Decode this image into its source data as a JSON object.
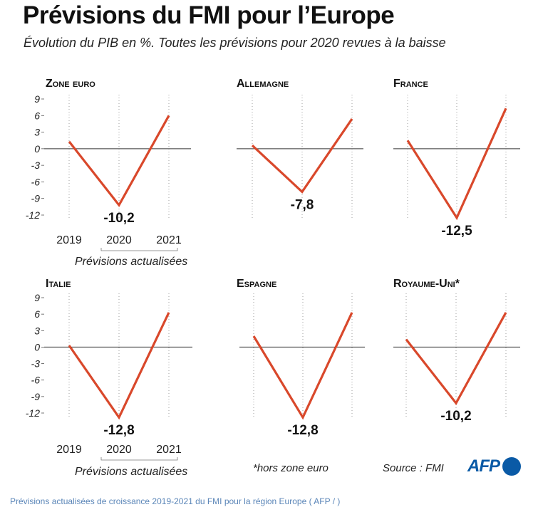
{
  "title": "Prévisions du FMI pour l’Europe",
  "subtitle": "Évolution du PIB en %. Toutes les prévisions pour 2020 revues à la baisse",
  "footnote": "*hors zone euro",
  "source": "Source : FMI",
  "logo": "AFP",
  "caption": "Prévisions actualisées de croissance 2019-2021 du FMI pour la région Europe ( AFP / )",
  "colors": {
    "line": "#d9482b",
    "text": "#111111",
    "axis": "#333333",
    "caption": "#5b86b8",
    "logo": "#0a5aa6"
  },
  "chart_data": [
    {
      "type": "line",
      "title": "Zone euro",
      "x": [
        "2019",
        "2020",
        "2021"
      ],
      "values": [
        1.3,
        -10.2,
        6.0
      ],
      "label": "-10,2",
      "yticks": [
        9,
        6,
        3,
        0,
        -3,
        -6,
        -9,
        -12
      ],
      "ylim": [
        -12,
        9
      ],
      "note": "Prévisions actualisées"
    },
    {
      "type": "line",
      "title": "Allemagne",
      "x": [
        "2019",
        "2020",
        "2021"
      ],
      "values": [
        0.6,
        -7.8,
        5.4
      ],
      "label": "-7,8",
      "ylim": [
        -12,
        9
      ]
    },
    {
      "type": "line",
      "title": "France",
      "x": [
        "2019",
        "2020",
        "2021"
      ],
      "values": [
        1.5,
        -12.5,
        7.3
      ],
      "label": "-12,5",
      "ylim": [
        -12,
        9
      ]
    },
    {
      "type": "line",
      "title": "Italie",
      "x": [
        "2019",
        "2020",
        "2021"
      ],
      "values": [
        0.3,
        -12.8,
        6.3
      ],
      "label": "-12,8",
      "yticks": [
        9,
        6,
        3,
        0,
        -3,
        -6,
        -9,
        -12
      ],
      "ylim": [
        -12,
        9
      ],
      "note": "Prévisions actualisées"
    },
    {
      "type": "line",
      "title": "Espagne",
      "x": [
        "2019",
        "2020",
        "2021"
      ],
      "values": [
        2.0,
        -12.8,
        6.3
      ],
      "label": "-12,8",
      "ylim": [
        -12,
        9
      ]
    },
    {
      "type": "line",
      "title": "Royaume-Uni*",
      "x": [
        "2019",
        "2020",
        "2021"
      ],
      "values": [
        1.4,
        -10.2,
        6.3
      ],
      "label": "-10,2",
      "ylim": [
        -12,
        9
      ]
    }
  ]
}
